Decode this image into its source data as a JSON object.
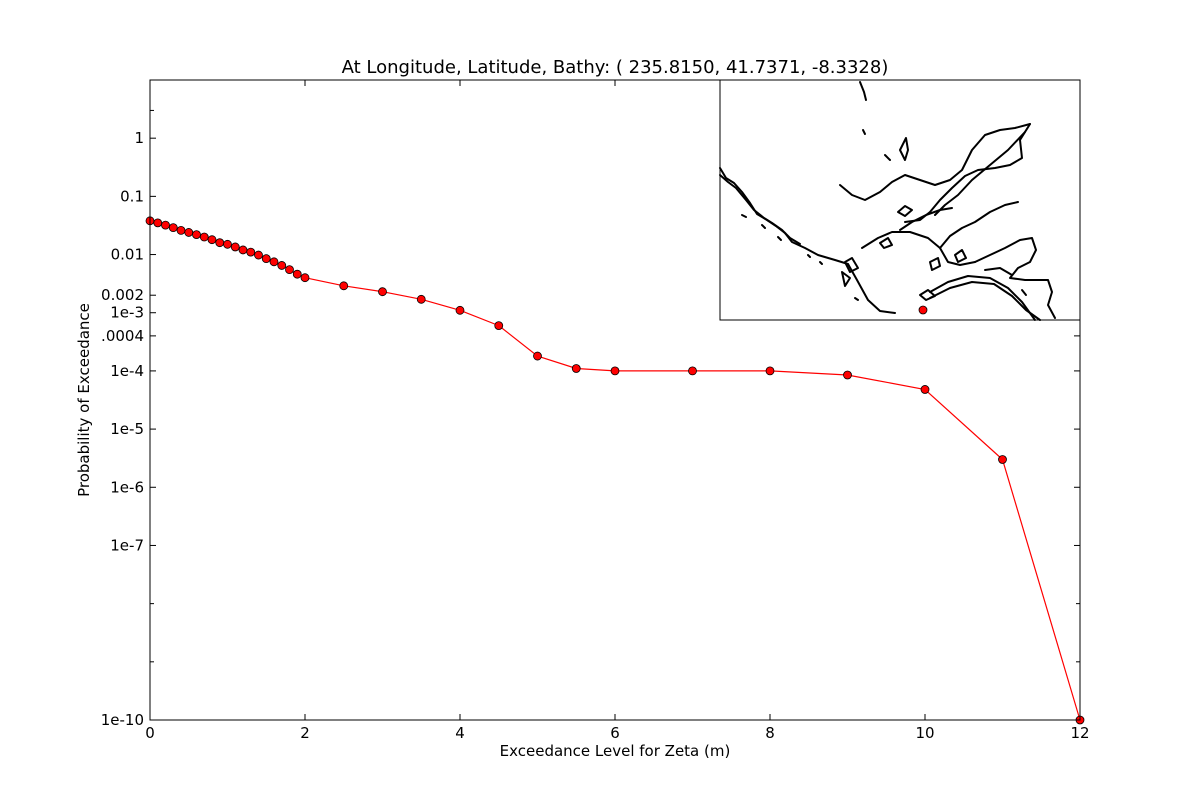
{
  "chart_data": {
    "type": "line",
    "title": "At Longitude, Latitude, Bathy:  ( 235.8150,  41.7371,  -8.3328)",
    "xlabel": "Exceedance Level for Zeta (m)",
    "ylabel": "Probability of Exceedance",
    "xlim": [
      0,
      12
    ],
    "ylim": [
      1e-10,
      10
    ],
    "y_scale": "log",
    "grid": false,
    "legend": "none",
    "line_color": "#ff0000",
    "marker_color": "#ff0000",
    "x_ticks": [
      0,
      2,
      4,
      6,
      8,
      10,
      12
    ],
    "x_tick_labels": [
      "0",
      "2",
      "4",
      "6",
      "8",
      "10",
      "12"
    ],
    "y_ticks": [
      {
        "value": 1,
        "label": "1"
      },
      {
        "value": 0.1,
        "label": "0.1"
      },
      {
        "value": 0.01,
        "label": "0.01"
      },
      {
        "value": 0.002,
        "label": "0.002"
      },
      {
        "value": 0.001,
        "label": "1e-3"
      },
      {
        "value": 0.0004,
        "label": ".0004"
      },
      {
        "value": 0.0001,
        "label": "1e-4"
      },
      {
        "value": 1e-05,
        "label": "1e-5"
      },
      {
        "value": 1e-06,
        "label": "1e-6"
      },
      {
        "value": 1e-07,
        "label": "1e-7"
      },
      {
        "value": 1e-10,
        "label": "1e-10"
      }
    ],
    "y_minor_ticks": [
      1e-08,
      1e-09
    ],
    "series": [
      {
        "x": [
          0,
          0.1,
          0.2,
          0.3,
          0.4,
          0.5,
          0.6,
          0.7,
          0.8,
          0.9,
          1.0,
          1.1,
          1.2,
          1.3,
          1.4,
          1.5,
          1.6,
          1.7,
          1.8,
          1.9,
          2.0,
          2.5,
          3.0,
          3.5,
          4.0,
          4.5,
          5.0,
          5.5,
          6,
          7,
          8,
          9,
          10,
          11,
          12
        ],
        "y": [
          0.038,
          0.035,
          0.032,
          0.029,
          0.026,
          0.024,
          0.022,
          0.02,
          0.018,
          0.016,
          0.015,
          0.0135,
          0.012,
          0.011,
          0.0098,
          0.0085,
          0.0075,
          0.0065,
          0.0055,
          0.0046,
          0.004,
          0.0029,
          0.0023,
          0.0017,
          0.0011,
          0.0006,
          0.00018,
          0.00011,
          0.0001,
          0.0001,
          0.0001,
          8.5e-05,
          4.8e-05,
          3e-06,
          1e-10
        ]
      }
    ]
  },
  "inset_map": {
    "marker_color": "#ff0000",
    "coastline_color": "#000000"
  }
}
